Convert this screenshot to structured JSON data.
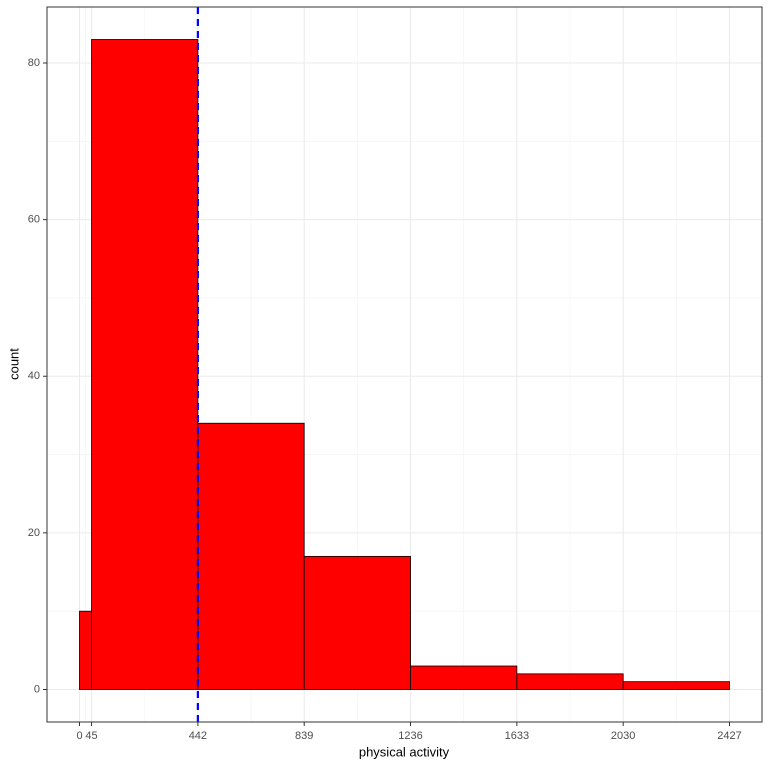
{
  "chart_data": {
    "type": "histogram",
    "x_label": "physical activity",
    "y_label": "count",
    "bins": [
      0,
      45,
      442,
      839,
      1236,
      1633,
      2030,
      2427
    ],
    "values": [
      10,
      83,
      34,
      17,
      3,
      2,
      1
    ],
    "color": "#ff0000",
    "edge_color": "#000000",
    "xlim": [
      -121.35,
      2548.35
    ],
    "ylim": [
      -4.15,
      87.15
    ],
    "xticks": [
      0,
      45,
      442,
      839,
      1236,
      1633,
      2030,
      2427
    ],
    "yticks": [
      0,
      20,
      40,
      60,
      80
    ],
    "grid": true,
    "vline": {
      "value": 442,
      "color": "#0000ff"
    }
  }
}
